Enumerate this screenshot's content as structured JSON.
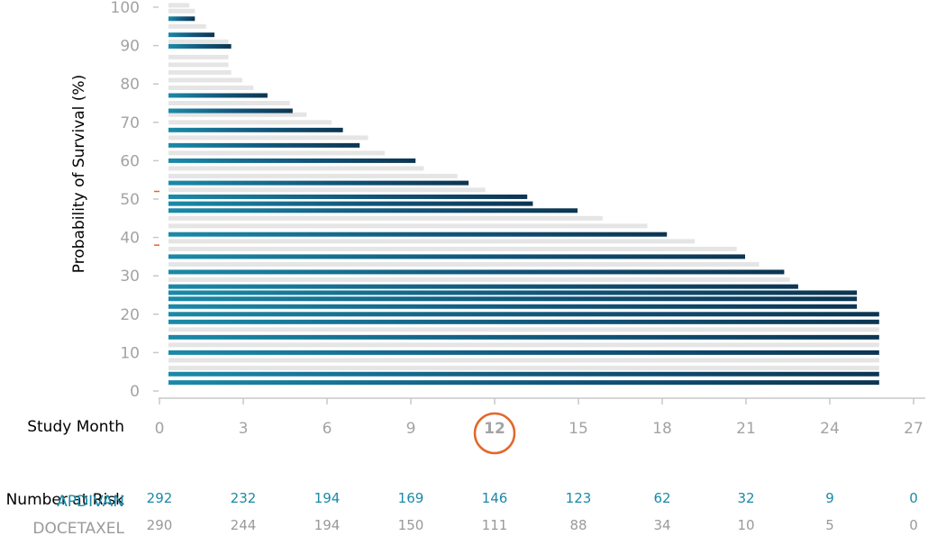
{
  "chart_data": {
    "type": "bar",
    "orientation": "horizontal",
    "title": "",
    "ylabel": "Probability of Survival (%)",
    "xlabel": "Study Month",
    "x_ticks": [
      0,
      3,
      6,
      9,
      12,
      15,
      18,
      21,
      24,
      27
    ],
    "y_ticks": [
      0,
      10,
      20,
      30,
      40,
      50,
      60,
      70,
      80,
      90,
      100
    ],
    "xlim": [
      0,
      27
    ],
    "ylim": [
      0,
      100
    ],
    "highlight_tick": 12,
    "series": [
      {
        "name": "APDIVAN",
        "color": "#1a8aa8",
        "bars": [
          {
            "y": 2.2,
            "month": 25.8
          },
          {
            "y": 4.4,
            "month": 25.8
          },
          {
            "y": 10.0,
            "month": 25.8
          },
          {
            "y": 14.0,
            "month": 25.8
          },
          {
            "y": 18.0,
            "month": 25.8
          },
          {
            "y": 20.0,
            "month": 25.8
          },
          {
            "y": 22.0,
            "month": 25.0
          },
          {
            "y": 24.0,
            "month": 25.0
          },
          {
            "y": 25.6,
            "month": 25.0
          },
          {
            "y": 27.2,
            "month": 22.9
          },
          {
            "y": 31.0,
            "month": 22.4
          },
          {
            "y": 35.0,
            "month": 21.0
          },
          {
            "y": 40.8,
            "month": 18.2
          },
          {
            "y": 47.0,
            "month": 15.0
          },
          {
            "y": 48.8,
            "month": 13.4
          },
          {
            "y": 50.6,
            "month": 13.2
          },
          {
            "y": 54.2,
            "month": 11.1
          },
          {
            "y": 60.0,
            "month": 9.2
          },
          {
            "y": 64.0,
            "month": 7.2
          },
          {
            "y": 68.0,
            "month": 6.6
          },
          {
            "y": 73.0,
            "month": 4.8
          },
          {
            "y": 77.0,
            "month": 3.9
          },
          {
            "y": 89.8,
            "month": 2.6
          },
          {
            "y": 92.8,
            "month": 2.0
          },
          {
            "y": 97.0,
            "month": 1.3
          }
        ]
      },
      {
        "name": "DOCETAXEL",
        "color": "#e5e5e5",
        "bars": [
          {
            "y": 6.0,
            "month": 25.8
          },
          {
            "y": 8.0,
            "month": 25.8
          },
          {
            "y": 12.0,
            "month": 25.8
          },
          {
            "y": 16.0,
            "month": 25.8
          },
          {
            "y": 20.0,
            "month": 25.8
          },
          {
            "y": 29.0,
            "month": 22.6
          },
          {
            "y": 33.0,
            "month": 21.5
          },
          {
            "y": 37.0,
            "month": 20.7
          },
          {
            "y": 39.0,
            "month": 19.2
          },
          {
            "y": 43.0,
            "month": 17.5
          },
          {
            "y": 45.0,
            "month": 15.9
          },
          {
            "y": 52.4,
            "month": 11.7
          },
          {
            "y": 56.0,
            "month": 10.7
          },
          {
            "y": 58.0,
            "month": 9.5
          },
          {
            "y": 62.0,
            "month": 8.1
          },
          {
            "y": 66.0,
            "month": 7.5
          },
          {
            "y": 70.0,
            "month": 6.2
          },
          {
            "y": 72.0,
            "month": 5.3
          },
          {
            "y": 75.0,
            "month": 4.7
          },
          {
            "y": 79.0,
            "month": 3.4
          },
          {
            "y": 81.0,
            "month": 3.0
          },
          {
            "y": 83.0,
            "month": 2.6
          },
          {
            "y": 85.0,
            "month": 2.5
          },
          {
            "y": 87.0,
            "month": 2.5
          },
          {
            "y": 91.0,
            "month": 2.5
          },
          {
            "y": 95.0,
            "month": 1.7
          },
          {
            "y": 99.0,
            "month": 1.3
          },
          {
            "y": 100.5,
            "month": 1.1
          }
        ]
      }
    ],
    "y_markers": [
      38,
      52
    ],
    "number_at_risk": {
      "label": "Number at Risk",
      "rows": [
        {
          "name": "APDIVAN",
          "color": "#1a8aa8",
          "values": [
            292,
            232,
            194,
            169,
            146,
            123,
            62,
            32,
            9,
            0
          ]
        },
        {
          "name": "DOCETAXEL",
          "color": "#9a9a9a",
          "values": [
            290,
            244,
            194,
            150,
            111,
            88,
            34,
            10,
            5,
            0
          ]
        }
      ]
    }
  },
  "colors": {
    "axis": "#c8c8c8",
    "tick_text": "#a3a3a3",
    "accent": "#e2672b",
    "bar_dark": "#0c3552",
    "bar_light": "#1a8aa8",
    "bar_grey": "#e5e5e5"
  }
}
